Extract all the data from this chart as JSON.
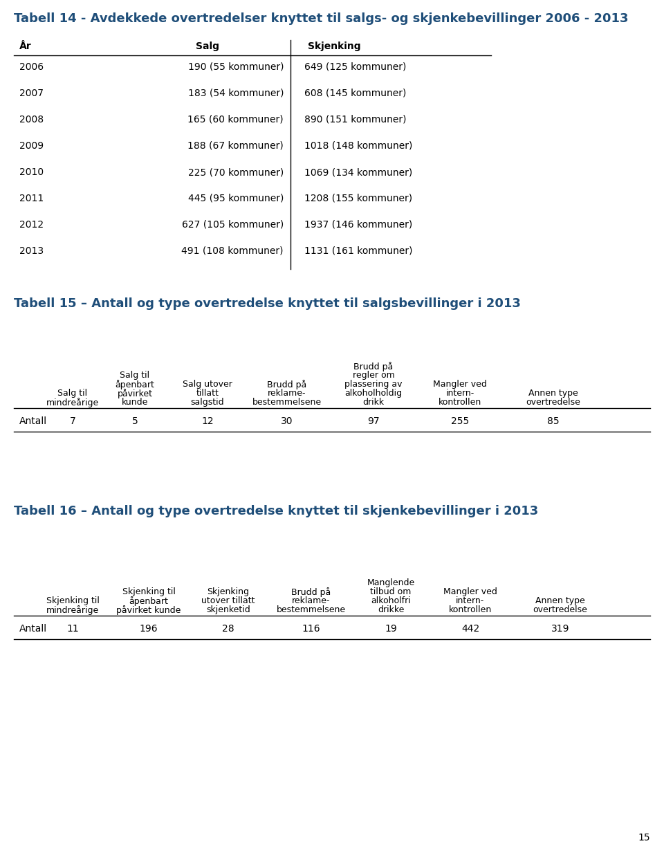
{
  "title14": "Tabell 14 - Avdekkede overtredelser knyttet til salgs- og skjenkebevillinger 2006 - 2013",
  "title14_color": "#1F4E79",
  "table14_headers": [
    "År",
    "Salg",
    "Skjenking"
  ],
  "table14_rows": [
    [
      "2006",
      "190 (55 kommuner)",
      "649 (125 kommuner)"
    ],
    [
      "2007",
      "183 (54 kommuner)",
      "608 (145 kommuner)"
    ],
    [
      "2008",
      "165 (60 kommuner)",
      "890 (151 kommuner)"
    ],
    [
      "2009",
      "188 (67 kommuner)",
      "1018 (148 kommuner)"
    ],
    [
      "2010",
      "225 (70 kommuner)",
      "1069 (134 kommuner)"
    ],
    [
      "2011",
      "445 (95 kommuner)",
      "1208 (155 kommuner)"
    ],
    [
      "2012",
      "627 (105 kommuner)",
      "1937 (146 kommuner)"
    ],
    [
      "2013",
      "491 (108 kommuner)",
      "1131 (161 kommuner)"
    ]
  ],
  "title15": "Tabell 15 – Antall og type overtredelse knyttet til salgsbevillinger i 2013",
  "title15_color": "#1F4E79",
  "table15_col_headers": [
    "Salg til\nmindreårige",
    "Salg til\nåpenbart\npåvirket\nkunde",
    "Salg utover\ntillatt\nsalgstid",
    "Brudd på\nreklame-\nbestemmelsene",
    "Brudd på\nregler om\nplassering av\nalkoholholdig\ndrikk",
    "Mangler ved\nintern-\nkontrollen",
    "Annen type\novertredelse"
  ],
  "table15_row_label": "Antall",
  "table15_values": [
    "7",
    "5",
    "12",
    "30",
    "97",
    "255",
    "85"
  ],
  "title16": "Tabell 16 – Antall og type overtredelse knyttet til skjenkebevillinger i 2013",
  "title16_color": "#1F4E79",
  "table16_col_headers": [
    "Skjenking til\nmindreårige",
    "Skjenking til\nåpenbart\npåvirket kunde",
    "Skjenking\nutover tillatt\nskjenketid",
    "Brudd på\nreklame-\nbestemmelsene",
    "Manglende\ntilbud om\nalkoholfri\ndrikke",
    "Mangler ved\nintern-\nkontrollen",
    "Annen type\novertredelse"
  ],
  "table16_row_label": "Antall",
  "table16_values": [
    "11",
    "196",
    "28",
    "116",
    "19",
    "442",
    "319"
  ],
  "page_number": "15",
  "background_color": "#ffffff",
  "text_color": "#000000",
  "font_size_title": 13,
  "font_size_body": 10,
  "font_size_col_header": 9,
  "font_size_table14_header": 10
}
